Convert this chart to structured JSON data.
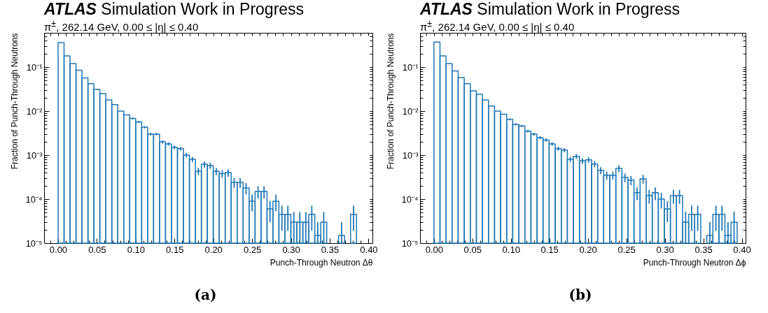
{
  "chart_data": [
    {
      "type": "histogram",
      "title": "ATLAS Simulation Work in Progress",
      "subtitle": "π$^{±}$, 262.14 GeV, 0.00 ≤ |η| ≤ 0.40",
      "xlabel": "Punch-Through Neutron Δθ",
      "ylabel": "Fraction of Punch-Through Neutrons",
      "annotations": [
        "(a)"
      ],
      "color": "#1f77b4",
      "log": true,
      "xlim": [
        -0.018,
        0.405
      ],
      "ylim": [
        1e-05,
        0.6
      ],
      "xticks": [
        {
          "value": -0.01,
          "label": null
        },
        {
          "value": 0,
          "label": "0.00"
        },
        {
          "value": 0.01,
          "label": null
        },
        {
          "value": 0.02,
          "label": null
        },
        {
          "value": 0.03,
          "label": null
        },
        {
          "value": 0.04,
          "label": null
        },
        {
          "value": 0.05,
          "label": "0.05"
        },
        {
          "value": 0.06,
          "label": null
        },
        {
          "value": 0.07,
          "label": null
        },
        {
          "value": 0.08,
          "label": null
        },
        {
          "value": 0.09,
          "label": null
        },
        {
          "value": 0.1,
          "label": "0.10"
        },
        {
          "value": 0.11,
          "label": null
        },
        {
          "value": 0.12,
          "label": null
        },
        {
          "value": 0.13,
          "label": null
        },
        {
          "value": 0.14,
          "label": null
        },
        {
          "value": 0.15,
          "label": "0.15"
        },
        {
          "value": 0.16,
          "label": null
        },
        {
          "value": 0.17,
          "label": null
        },
        {
          "value": 0.18,
          "label": null
        },
        {
          "value": 0.19,
          "label": null
        },
        {
          "value": 0.2,
          "label": "0.20"
        },
        {
          "value": 0.21,
          "label": null
        },
        {
          "value": 0.22,
          "label": null
        },
        {
          "value": 0.23,
          "label": null
        },
        {
          "value": 0.24,
          "label": null
        },
        {
          "value": 0.25,
          "label": "0.25"
        },
        {
          "value": 0.26,
          "label": null
        },
        {
          "value": 0.27,
          "label": null
        },
        {
          "value": 0.28,
          "label": null
        },
        {
          "value": 0.29,
          "label": null
        },
        {
          "value": 0.3,
          "label": "0.30"
        },
        {
          "value": 0.31,
          "label": null
        },
        {
          "value": 0.32,
          "label": null
        },
        {
          "value": 0.33,
          "label": null
        },
        {
          "value": 0.34,
          "label": null
        },
        {
          "value": 0.35,
          "label": "0.35"
        },
        {
          "value": 0.36,
          "label": null
        },
        {
          "value": 0.37,
          "label": null
        },
        {
          "value": 0.38,
          "label": null
        },
        {
          "value": 0.39,
          "label": null
        },
        {
          "value": 0.4,
          "label": "0.40"
        }
      ],
      "yticks": [
        {
          "value": 1e-05,
          "label": "10⁻⁵"
        },
        {
          "value": 2e-05,
          "label": null
        },
        {
          "value": 3e-05,
          "label": null
        },
        {
          "value": 4e-05,
          "label": null
        },
        {
          "value": 5e-05,
          "label": null
        },
        {
          "value": 6e-05,
          "label": null
        },
        {
          "value": 7e-05,
          "label": null
        },
        {
          "value": 8e-05,
          "label": null
        },
        {
          "value": 9e-05,
          "label": null
        },
        {
          "value": 0.0001,
          "label": "10⁻⁴"
        },
        {
          "value": 0.0002,
          "label": null
        },
        {
          "value": 0.0003,
          "label": null
        },
        {
          "value": 0.0004,
          "label": null
        },
        {
          "value": 0.0005,
          "label": null
        },
        {
          "value": 0.0006,
          "label": null
        },
        {
          "value": 0.0007,
          "label": null
        },
        {
          "value": 0.0008,
          "label": null
        },
        {
          "value": 0.0009,
          "label": null
        },
        {
          "value": 0.001,
          "label": "10⁻³"
        },
        {
          "value": 0.002,
          "label": null
        },
        {
          "value": 0.003,
          "label": null
        },
        {
          "value": 0.004,
          "label": null
        },
        {
          "value": 0.005,
          "label": null
        },
        {
          "value": 0.006,
          "label": null
        },
        {
          "value": 0.007,
          "label": null
        },
        {
          "value": 0.008,
          "label": null
        },
        {
          "value": 0.009,
          "label": null
        },
        {
          "value": 0.01,
          "label": "10⁻²"
        },
        {
          "value": 0.02,
          "label": null
        },
        {
          "value": 0.03,
          "label": null
        },
        {
          "value": 0.04,
          "label": null
        },
        {
          "value": 0.05,
          "label": null
        },
        {
          "value": 0.06,
          "label": null
        },
        {
          "value": 0.07,
          "label": null
        },
        {
          "value": 0.08,
          "label": null
        },
        {
          "value": 0.09,
          "label": null
        },
        {
          "value": 0.1,
          "label": "10⁻¹"
        },
        {
          "value": 0.2,
          "label": null
        },
        {
          "value": 0.3,
          "label": null
        },
        {
          "value": 0.4,
          "label": null
        },
        {
          "value": 0.5,
          "label": null
        },
        {
          "value": 0.6,
          "label": null
        }
      ],
      "bins": [
        0,
        0.0077,
        0.0154,
        0.0231,
        0.0308,
        0.0385,
        0.0461,
        0.0538,
        0.0615,
        0.0692,
        0.0769,
        0.0846,
        0.0923,
        0.1,
        0.1077,
        0.1154,
        0.123,
        0.1307,
        0.1384,
        0.1461,
        0.1538,
        0.1615,
        0.1692,
        0.1769,
        0.1846,
        0.1923,
        0.1999,
        0.2076,
        0.2153,
        0.223,
        0.2307,
        0.2384,
        0.2461,
        0.2538,
        0.2615,
        0.2692,
        0.2768,
        0.2845,
        0.2922,
        0.2999,
        0.3076,
        0.3153,
        0.323,
        0.3307,
        0.3384,
        0.3461,
        0.3537,
        0.3614,
        0.3691,
        0.3768,
        0.3845
      ],
      "values": [
        0.36,
        0.18,
        0.12,
        0.085,
        0.057,
        0.042,
        0.031,
        0.025,
        0.018,
        0.014,
        0.01,
        0.0082,
        0.0068,
        0.0057,
        0.0043,
        0.003,
        0.003,
        0.002,
        0.0018,
        0.0015,
        0.0014,
        0.001,
        0.0008,
        0.00043,
        0.00062,
        0.00058,
        0.00043,
        0.00038,
        0.0004,
        0.00024,
        0.00024,
        0.00018,
        9e-05,
        0.00015,
        0.00015,
        6e-05,
        9e-05,
        4.5e-05,
        4.5e-05,
        3e-05,
        3e-05,
        3e-05,
        4.5e-05,
        1.5e-05,
        3e-05,
        null,
        null,
        1.5e-05,
        null,
        4.5e-05
      ],
      "errors": [
        null,
        null,
        null,
        null,
        null,
        null,
        null,
        null,
        null,
        null,
        null,
        null,
        0.00032,
        0.00029,
        0.00025,
        0.00021,
        0.00021,
        0.00017,
        0.00016,
        0.00015,
        0.00014,
        0.00012,
        0.00011,
        8e-05,
        9.6e-05,
        9.3e-05,
        8e-05,
        7.5e-05,
        7.7e-05,
        6e-05,
        6e-05,
        5.2e-05,
        3.7e-05,
        4.7e-05,
        4.7e-05,
        3e-05,
        3.7e-05,
        2.6e-05,
        2.6e-05,
        [
          1e-05,
          5.1e-05
        ],
        [
          1e-05,
          5.1e-05
        ],
        [
          1e-05,
          5.1e-05
        ],
        2.6e-05,
        [
          1e-05,
          3e-05
        ],
        [
          1e-05,
          5.1e-05
        ],
        null,
        null,
        [
          1e-05,
          3e-05
        ],
        null,
        2.6e-05
      ]
    },
    {
      "type": "histogram",
      "title": "ATLAS Simulation Work in Progress",
      "subtitle": "π$^{±}$, 262.14 GeV, 0.00 ≤ |η| ≤ 0.40",
      "xlabel": "Punch-Through Neutron Δϕ",
      "ylabel": "Fraction of Punch-Through Neutrons",
      "annotations": [
        "(b)"
      ],
      "color": "#1f77b4",
      "log": true,
      "xlim": [
        -0.018,
        0.405
      ],
      "ylim": [
        1e-05,
        0.6
      ],
      "xticks": [
        {
          "value": -0.01,
          "label": null
        },
        {
          "value": 0,
          "label": "0.00"
        },
        {
          "value": 0.01,
          "label": null
        },
        {
          "value": 0.02,
          "label": null
        },
        {
          "value": 0.03,
          "label": null
        },
        {
          "value": 0.04,
          "label": null
        },
        {
          "value": 0.05,
          "label": "0.05"
        },
        {
          "value": 0.06,
          "label": null
        },
        {
          "value": 0.07,
          "label": null
        },
        {
          "value": 0.08,
          "label": null
        },
        {
          "value": 0.09,
          "label": null
        },
        {
          "value": 0.1,
          "label": "0.10"
        },
        {
          "value": 0.11,
          "label": null
        },
        {
          "value": 0.12,
          "label": null
        },
        {
          "value": 0.13,
          "label": null
        },
        {
          "value": 0.14,
          "label": null
        },
        {
          "value": 0.15,
          "label": "0.15"
        },
        {
          "value": 0.16,
          "label": null
        },
        {
          "value": 0.17,
          "label": null
        },
        {
          "value": 0.18,
          "label": null
        },
        {
          "value": 0.19,
          "label": null
        },
        {
          "value": 0.2,
          "label": "0.20"
        },
        {
          "value": 0.21,
          "label": null
        },
        {
          "value": 0.22,
          "label": null
        },
        {
          "value": 0.23,
          "label": null
        },
        {
          "value": 0.24,
          "label": null
        },
        {
          "value": 0.25,
          "label": "0.25"
        },
        {
          "value": 0.26,
          "label": null
        },
        {
          "value": 0.27,
          "label": null
        },
        {
          "value": 0.28,
          "label": null
        },
        {
          "value": 0.29,
          "label": null
        },
        {
          "value": 0.3,
          "label": "0.30"
        },
        {
          "value": 0.31,
          "label": null
        },
        {
          "value": 0.32,
          "label": null
        },
        {
          "value": 0.33,
          "label": null
        },
        {
          "value": 0.34,
          "label": null
        },
        {
          "value": 0.35,
          "label": "0.35"
        },
        {
          "value": 0.36,
          "label": null
        },
        {
          "value": 0.37,
          "label": null
        },
        {
          "value": 0.38,
          "label": null
        },
        {
          "value": 0.39,
          "label": null
        },
        {
          "value": 0.4,
          "label": "0.40"
        }
      ],
      "yticks": [
        {
          "value": 1e-05,
          "label": "10⁻⁵"
        },
        {
          "value": 2e-05,
          "label": null
        },
        {
          "value": 3e-05,
          "label": null
        },
        {
          "value": 4e-05,
          "label": null
        },
        {
          "value": 5e-05,
          "label": null
        },
        {
          "value": 6e-05,
          "label": null
        },
        {
          "value": 7e-05,
          "label": null
        },
        {
          "value": 8e-05,
          "label": null
        },
        {
          "value": 9e-05,
          "label": null
        },
        {
          "value": 0.0001,
          "label": "10⁻⁴"
        },
        {
          "value": 0.0002,
          "label": null
        },
        {
          "value": 0.0003,
          "label": null
        },
        {
          "value": 0.0004,
          "label": null
        },
        {
          "value": 0.0005,
          "label": null
        },
        {
          "value": 0.0006,
          "label": null
        },
        {
          "value": 0.0007,
          "label": null
        },
        {
          "value": 0.0008,
          "label": null
        },
        {
          "value": 0.0009,
          "label": null
        },
        {
          "value": 0.001,
          "label": "10⁻³"
        },
        {
          "value": 0.002,
          "label": null
        },
        {
          "value": 0.003,
          "label": null
        },
        {
          "value": 0.004,
          "label": null
        },
        {
          "value": 0.005,
          "label": null
        },
        {
          "value": 0.006,
          "label": null
        },
        {
          "value": 0.007,
          "label": null
        },
        {
          "value": 0.008,
          "label": null
        },
        {
          "value": 0.009,
          "label": null
        },
        {
          "value": 0.01,
          "label": "10⁻²"
        },
        {
          "value": 0.02,
          "label": null
        },
        {
          "value": 0.03,
          "label": null
        },
        {
          "value": 0.04,
          "label": null
        },
        {
          "value": 0.05,
          "label": null
        },
        {
          "value": 0.06,
          "label": null
        },
        {
          "value": 0.07,
          "label": null
        },
        {
          "value": 0.08,
          "label": null
        },
        {
          "value": 0.09,
          "label": null
        },
        {
          "value": 0.1,
          "label": "10⁻¹"
        },
        {
          "value": 0.2,
          "label": null
        },
        {
          "value": 0.3,
          "label": null
        },
        {
          "value": 0.4,
          "label": null
        },
        {
          "value": 0.5,
          "label": null
        },
        {
          "value": 0.6,
          "label": null
        }
      ],
      "bins": [
        0,
        0.0079,
        0.0158,
        0.0236,
        0.0315,
        0.0394,
        0.0473,
        0.0552,
        0.063,
        0.0709,
        0.0788,
        0.0867,
        0.0946,
        0.1024,
        0.1103,
        0.1182,
        0.1261,
        0.134,
        0.1418,
        0.1497,
        0.1576,
        0.1655,
        0.1734,
        0.1812,
        0.1891,
        0.197,
        0.2049,
        0.2128,
        0.2206,
        0.2285,
        0.2364,
        0.2443,
        0.2522,
        0.26,
        0.2679,
        0.2758,
        0.2837,
        0.2916,
        0.2994,
        0.3073,
        0.3152,
        0.3231,
        0.331,
        0.3388,
        0.3467,
        0.3546,
        0.3625,
        0.3704,
        0.3782,
        0.3861,
        0.394
      ],
      "values": [
        0.37,
        0.18,
        0.12,
        0.082,
        0.058,
        0.042,
        0.029,
        0.024,
        0.018,
        0.013,
        0.01,
        0.0085,
        0.0065,
        0.005,
        0.0046,
        0.0035,
        0.003,
        0.0025,
        0.0022,
        0.0018,
        0.0014,
        0.0013,
        0.0008,
        0.00094,
        0.00074,
        0.00078,
        0.00063,
        0.00045,
        0.00035,
        0.00035,
        0.0005,
        0.00031,
        0.00027,
        0.00014,
        0.00029,
        0.00012,
        0.00014,
        0.0001,
        6e-05,
        0.00012,
        0.00012,
        3e-05,
        4.5e-05,
        4.5e-05,
        null,
        1.5e-05,
        4.5e-05,
        4.5e-05,
        1.5e-05,
        3e-05
      ],
      "errors": [
        null,
        null,
        null,
        null,
        null,
        null,
        null,
        null,
        null,
        null,
        null,
        null,
        0.00031,
        0.00027,
        0.00026,
        0.00023,
        0.00021,
        0.0002,
        0.00018,
        0.00017,
        0.00015,
        0.00014,
        0.00011,
        0.00012,
        0.00011,
        0.00011,
        9.7e-05,
        8.2e-05,
        7.2e-05,
        7.2e-05,
        8.6e-05,
        6.9e-05,
        6.4e-05,
        4.5e-05,
        6.6e-05,
        4.2e-05,
        4.5e-05,
        3.9e-05,
        3e-05,
        4.2e-05,
        4.2e-05,
        [
          1e-05,
          5.2e-05
        ],
        2.6e-05,
        2.6e-05,
        null,
        [
          1e-05,
          3e-05
        ],
        2.6e-05,
        2.6e-05,
        [
          1e-05,
          3e-05
        ],
        [
          1e-05,
          5.2e-05
        ]
      ]
    }
  ]
}
